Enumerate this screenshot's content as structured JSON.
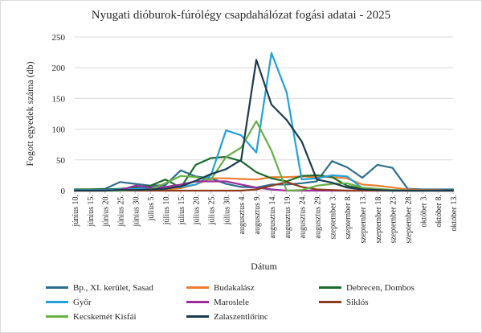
{
  "chart_data": {
    "type": "line",
    "title": "Nyugati dióburok-fúrólégy csapdahálózat fogási adatai - 2025",
    "xlabel": "Dátum",
    "ylabel": "Fogott egyedek száma (db)",
    "ylim": [
      0,
      250
    ],
    "yticks": [
      0,
      50,
      100,
      150,
      200,
      250
    ],
    "grid": true,
    "legend_position": "bottom",
    "categories": [
      "június 10.",
      "június 15.",
      "június 20.",
      "június 25.",
      "június 30.",
      "július 5.",
      "július 10.",
      "július 15.",
      "július 20.",
      "július 25.",
      "július 30.",
      "augusztus 4.",
      "augusztus 9.",
      "augusztus 14.",
      "augusztus 19.",
      "augusztus 24.",
      "augusztus 29.",
      "szeptember 3.",
      "szeptember 8.",
      "szeptember 13.",
      "szeptember 18.",
      "szeptember 23.",
      "szeptember 28.",
      "október 3.",
      "október 8.",
      "október 13."
    ],
    "series": [
      {
        "name": "Bp., XI. kerület, Sasad",
        "color": "#2e6e8e",
        "values": [
          2,
          2,
          3,
          14,
          11,
          8,
          9,
          33,
          23,
          20,
          11,
          6,
          5,
          10,
          10,
          12,
          15,
          48,
          38,
          21,
          42,
          37,
          3,
          2,
          2,
          2
        ]
      },
      {
        "name": "Budakalász",
        "color": "#ed7d31",
        "values": [
          0,
          0,
          0,
          1,
          1,
          1,
          2,
          4,
          10,
          20,
          20,
          19,
          18,
          22,
          22,
          23,
          22,
          22,
          20,
          10,
          8,
          5,
          2,
          1,
          1,
          0
        ]
      },
      {
        "name": "Debrecen, Dombos",
        "color": "#1e6b2a",
        "values": [
          2,
          2,
          2,
          3,
          5,
          8,
          18,
          5,
          42,
          53,
          55,
          48,
          30,
          20,
          15,
          24,
          25,
          22,
          8,
          3,
          2,
          1,
          0,
          0,
          0,
          0
        ]
      },
      {
        "name": "Győr",
        "color": "#23a1da",
        "values": [
          1,
          1,
          1,
          2,
          3,
          5,
          5,
          6,
          10,
          25,
          98,
          90,
          62,
          224,
          160,
          18,
          20,
          25,
          23,
          4,
          2,
          1,
          0,
          0,
          0,
          0
        ]
      },
      {
        "name": "Maroslele",
        "color": "#9b2d9b",
        "values": [
          0,
          0,
          0,
          1,
          8,
          5,
          6,
          10,
          15,
          15,
          15,
          10,
          5,
          2,
          0,
          0,
          0,
          0,
          0,
          0,
          0,
          0,
          0,
          0,
          0,
          0
        ]
      },
      {
        "name": "Siklós",
        "color": "#8b3a1e",
        "values": [
          0,
          0,
          0,
          0,
          0,
          0,
          0,
          0,
          0,
          0,
          0,
          0,
          2,
          8,
          14,
          6,
          2,
          1,
          0,
          0,
          0,
          0,
          0,
          0,
          0,
          0
        ]
      },
      {
        "name": "Kecskemét Kisfái",
        "color": "#67b045",
        "values": [
          0,
          0,
          0,
          0,
          1,
          2,
          12,
          24,
          22,
          18,
          55,
          70,
          113,
          65,
          0,
          1,
          8,
          11,
          12,
          5,
          3,
          1,
          0,
          0,
          0,
          0
        ]
      },
      {
        "name": "Zalaszentlőrinc",
        "color": "#1c3a4e",
        "values": [
          0,
          0,
          0,
          1,
          1,
          2,
          3,
          7,
          16,
          27,
          35,
          50,
          213,
          140,
          115,
          80,
          18,
          13,
          5,
          2,
          1,
          0,
          0,
          0,
          0,
          0
        ]
      }
    ]
  }
}
